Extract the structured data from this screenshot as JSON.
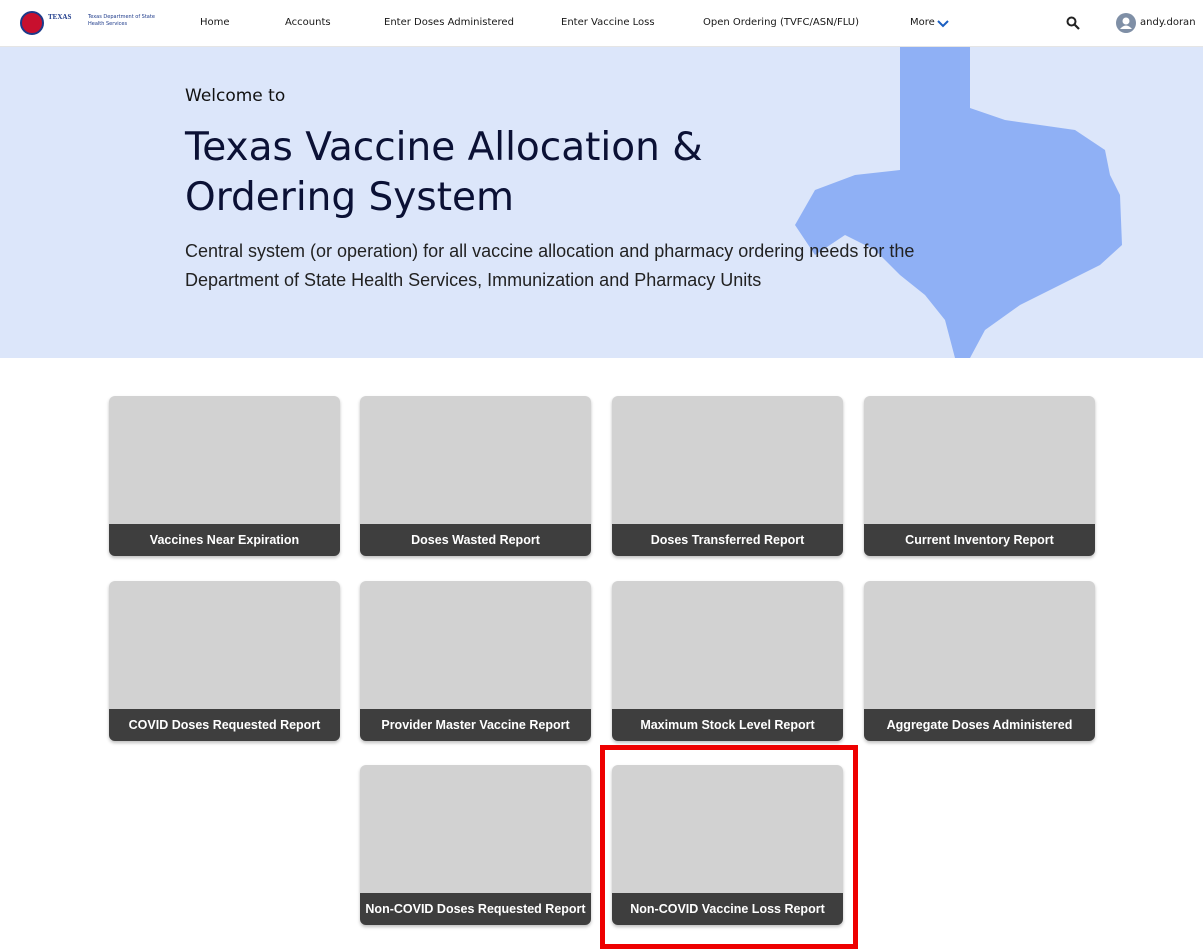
{
  "header": {
    "logo_text": "TEXAS",
    "logo_subtext": "Texas Department of State Health Services",
    "nav": [
      "Home",
      "Accounts",
      "Enter Doses Administered",
      "Enter Vaccine Loss",
      "Open Ordering (TVFC/ASN/FLU)",
      "More"
    ],
    "user": "andy.doran"
  },
  "hero": {
    "welcome": "Welcome to",
    "title_lines": [
      "Texas Vaccine Allocation &",
      "Ordering System"
    ],
    "description": "Central system (or operation) for all vaccine allocation and pharmacy ordering needs for the Department of State Health Services, Immunization and Pharmacy Units"
  },
  "tiles": [
    "Vaccines Near Expiration",
    "Doses Wasted Report",
    "Doses Transferred Report",
    "Current Inventory Report",
    "COVID Doses Requested Report",
    "Provider Master Vaccine Report",
    "Maximum Stock Level Report",
    "Aggregate Doses Administered",
    "Non-COVID Doses Requested Report",
    "Non-COVID Vaccine Loss Report"
  ]
}
